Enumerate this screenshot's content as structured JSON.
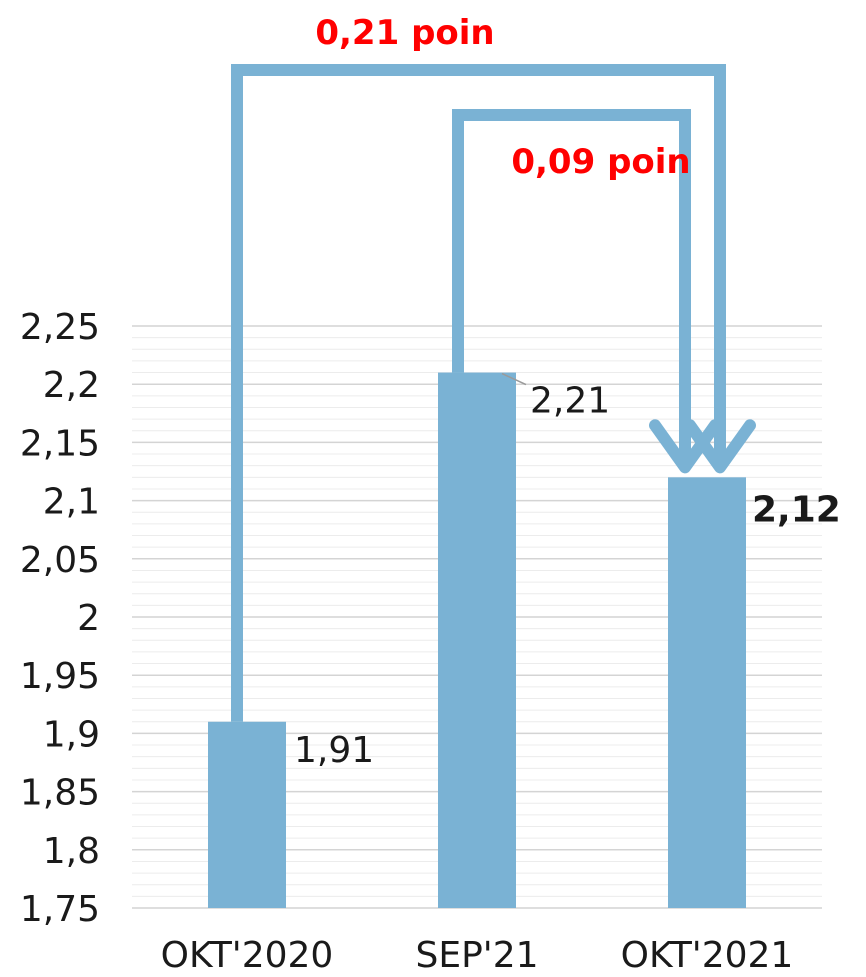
{
  "chart_data": {
    "type": "bar",
    "categories": [
      "OKT'2020",
      "SEP'21",
      "OKT'2021"
    ],
    "values": [
      1.91,
      2.21,
      2.12
    ],
    "data_labels": [
      "1,91",
      "2,21",
      "2,12"
    ],
    "ylim": [
      1.75,
      2.25
    ],
    "yticks": [
      {
        "value": 1.75,
        "label": "1,75"
      },
      {
        "value": 1.8,
        "label": "1,8"
      },
      {
        "value": 1.85,
        "label": "1,85"
      },
      {
        "value": 1.9,
        "label": "1,9"
      },
      {
        "value": 1.95,
        "label": "1,95"
      },
      {
        "value": 2.0,
        "label": "2"
      },
      {
        "value": 2.05,
        "label": "2,05"
      },
      {
        "value": 2.1,
        "label": "2,1"
      },
      {
        "value": 2.15,
        "label": "2,15"
      },
      {
        "value": 2.2,
        "label": "2,2"
      },
      {
        "value": 2.25,
        "label": "2,25"
      }
    ],
    "minor_grid_step": 0.01,
    "grid": true,
    "bar_color": "#7ab2d4",
    "annotations": [
      {
        "from": "OKT'2020",
        "to": "OKT'2021",
        "label": "0,21 poin",
        "color": "#ff0000"
      },
      {
        "from": "SEP'21",
        "to": "OKT'2021",
        "label": "0,09 poin",
        "color": "#ff0000"
      }
    ]
  }
}
